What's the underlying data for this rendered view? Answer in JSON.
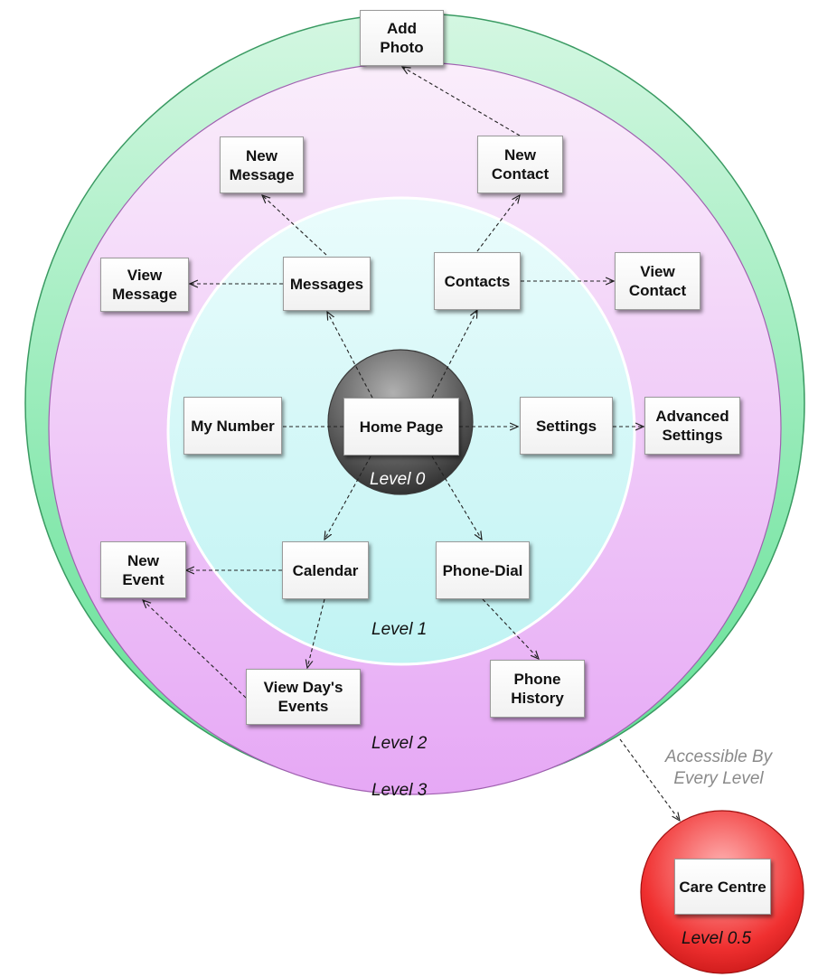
{
  "colors": {
    "level3_ring": "#5fe093",
    "level2_ring": "#e6a8f5",
    "level1_ring": "#c8f6f6",
    "level0_hub": "#555555",
    "care_centre": "#ee2222",
    "note_text": "#8a8a8a"
  },
  "levels": {
    "level0": "Level 0",
    "level1": "Level 1",
    "level2": "Level 2",
    "level3": "Level 3",
    "level05": "Level 0.5"
  },
  "nodes": {
    "home": "Home Page",
    "messages": "Messages",
    "contacts": "Contacts",
    "my_number": "My Number",
    "settings": "Settings",
    "calendar": "Calendar",
    "phone_dial": "Phone-Dial",
    "new_message": "New Message",
    "view_message": "View Message",
    "new_contact": "New Contact",
    "view_contact": "View Contact",
    "advanced_settings": "Advanced Settings",
    "new_event": "New Event",
    "view_days_events": "View Day's Events",
    "phone_history": "Phone History",
    "add_photo": "Add Photo",
    "care_centre": "Care Centre"
  },
  "note": "Accessible By Every Level"
}
